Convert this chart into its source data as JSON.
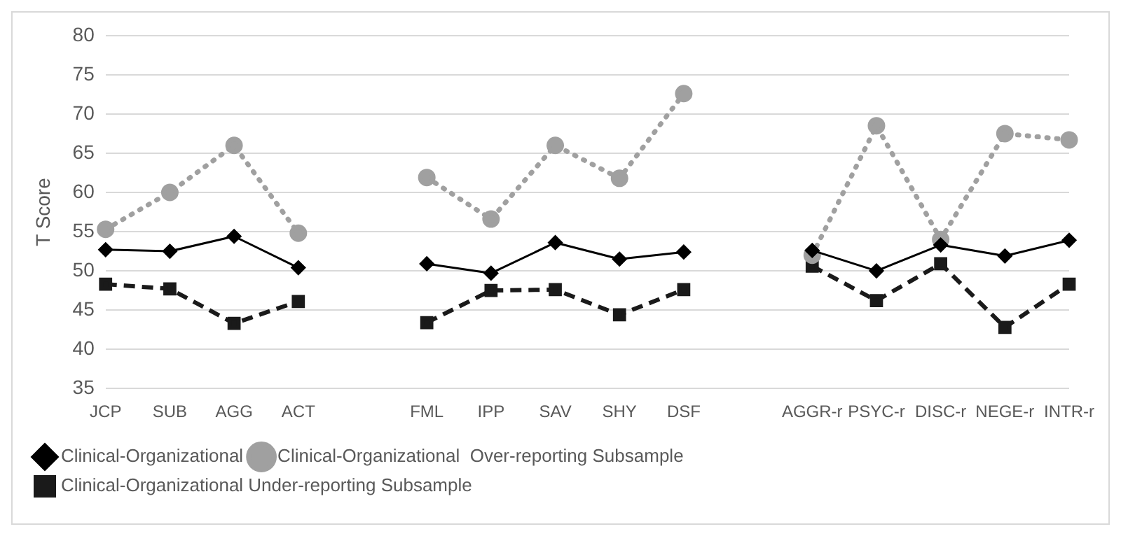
{
  "chart_data": {
    "type": "line",
    "ylabel": "T Score",
    "categories": [
      "JCP",
      "SUB",
      "AGG",
      "ACT",
      null,
      "FML",
      "IPP",
      "SAV",
      "SHY",
      "DSF",
      null,
      "AGGR-r",
      "PSYC-r",
      "DISC-r",
      "NEGE-r",
      "INTR-r"
    ],
    "series": [
      {
        "name": "Clinical-Organizational Under-reporting Subsample",
        "color": "#1a1a1a",
        "line_style": "dashed",
        "marker": "square",
        "values": [
          48.3,
          47.7,
          43.3,
          46.1,
          null,
          43.4,
          47.5,
          47.6,
          44.4,
          47.6,
          null,
          50.6,
          46.2,
          50.9,
          42.8,
          48.3
        ]
      },
      {
        "name": "Clinical-Organizational  Over-reporting Subsample",
        "color": "#a0a0a0",
        "line_style": "dotted",
        "marker": "circle",
        "values": [
          55.3,
          60,
          66,
          54.8,
          null,
          61.9,
          56.6,
          66,
          61.8,
          72.6,
          null,
          52,
          68.5,
          54,
          67.5,
          66.7
        ]
      },
      {
        "name": "Clinical-Organizational",
        "color": "#000000",
        "line_style": "solid",
        "marker": "diamond",
        "values": [
          52.7,
          52.5,
          54.4,
          50.4,
          null,
          50.9,
          49.7,
          53.6,
          51.5,
          52.4,
          null,
          52.6,
          50,
          53.3,
          51.9,
          53.9
        ]
      }
    ],
    "ylim": [
      35,
      80
    ],
    "yticks": [
      35,
      40,
      45,
      50,
      55,
      60,
      65,
      70,
      75,
      80
    ],
    "grid": "y",
    "legend": "bottom"
  }
}
